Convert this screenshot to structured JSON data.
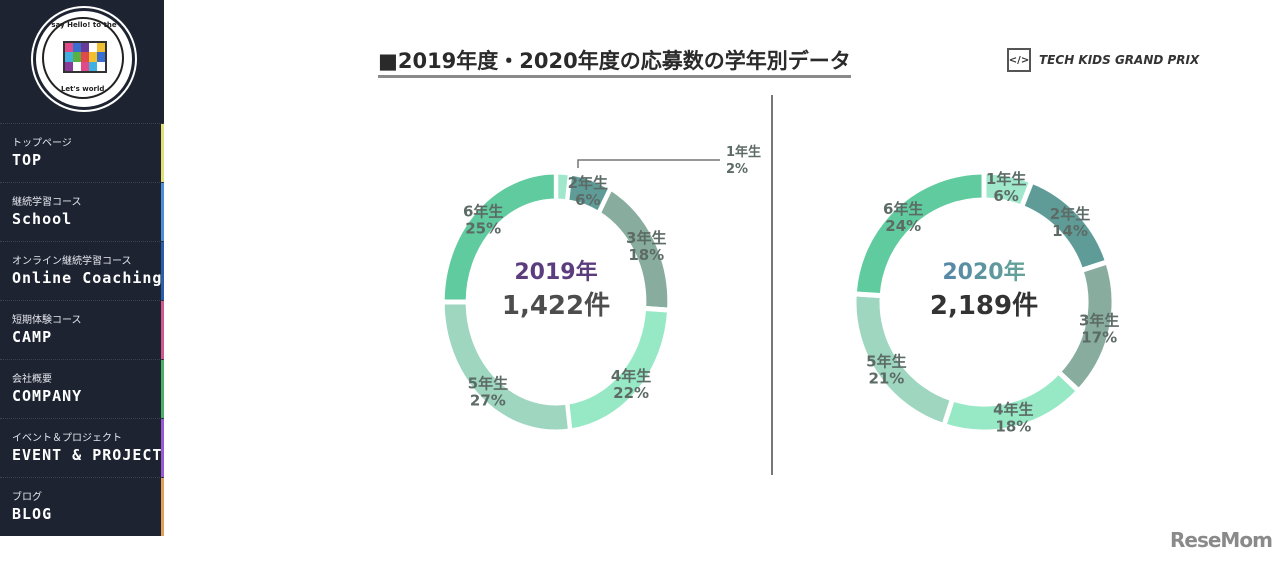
{
  "sidebar": {
    "logo_text": "Let's say Hello! to the world. Tech Kids School",
    "items": [
      {
        "jp": "トップページ",
        "en": "TOP",
        "color": "#e3df78"
      },
      {
        "jp": "継続学習コース",
        "en": "School",
        "color": "#4f8fd6"
      },
      {
        "jp": "オンライン継続学習コース",
        "en": "Online Coaching",
        "color": "#2b5ea8"
      },
      {
        "jp": "短期体験コース",
        "en": "CAMP",
        "color": "#cf5a8c"
      },
      {
        "jp": "会社概要",
        "en": "COMPANY",
        "color": "#4caf6a"
      },
      {
        "jp": "イベント＆プロジェクト",
        "en": "EVENT & PROJECT",
        "color": "#9a5ad2"
      },
      {
        "jp": "ブログ",
        "en": "BLOG",
        "color": "#e0a060"
      }
    ]
  },
  "header": {
    "title": "■2019年度・2020年度の応募数の学年別データ",
    "brand_icon": "</>",
    "brand": "TECH KIDS GRAND PRIX"
  },
  "watermark": "ReseMom",
  "chart_data": [
    {
      "type": "pie",
      "donut": true,
      "center_title": "2019年",
      "center_value": "1,422件",
      "categories": [
        "1年生",
        "2年生",
        "3年生",
        "4年生",
        "5年生",
        "6年生"
      ],
      "values": [
        2,
        6,
        18,
        22,
        27,
        25
      ],
      "labels": [
        "2%",
        "6%",
        "18%",
        "22%",
        "27%",
        "25%"
      ],
      "colors": [
        "#9fe8cc",
        "#5f9c98",
        "#88ad9f",
        "#97e9c6",
        "#9ed6c0",
        "#5fcb9e"
      ]
    },
    {
      "type": "pie",
      "donut": true,
      "center_title": "2020年",
      "center_value": "2,189件",
      "categories": [
        "1年生",
        "2年生",
        "3年生",
        "4年生",
        "5年生",
        "6年生"
      ],
      "values": [
        6,
        14,
        17,
        18,
        21,
        24
      ],
      "labels": [
        "6%",
        "14%",
        "17%",
        "18%",
        "21%",
        "24%"
      ],
      "colors": [
        "#9fe8cc",
        "#5f9c98",
        "#88ad9f",
        "#97e9c6",
        "#9ed6c0",
        "#5fcb9e"
      ]
    }
  ]
}
